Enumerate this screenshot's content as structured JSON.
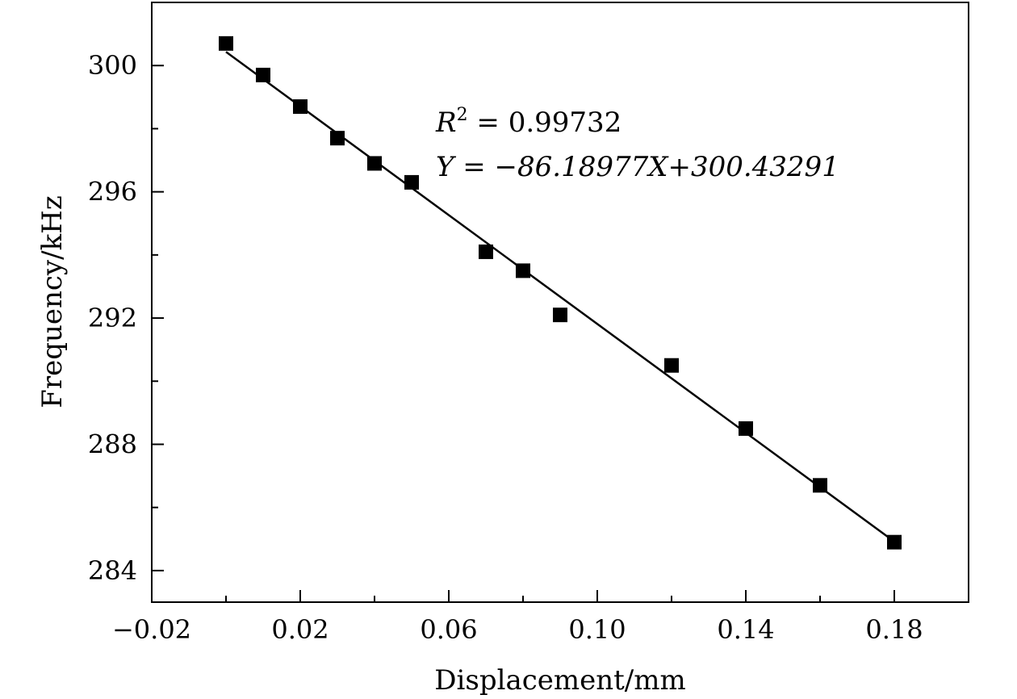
{
  "chart_data": {
    "type": "scatter",
    "xlabel": "Displacement/mm",
    "ylabel": "Frequency/kHz",
    "xlim": [
      -0.02,
      0.2
    ],
    "ylim": [
      283,
      302
    ],
    "xticks": [
      -0.02,
      0.02,
      0.06,
      0.1,
      0.14,
      0.18
    ],
    "xtick_labels": [
      "−0.02",
      "0.02",
      "0.06",
      "0.10",
      "0.14",
      "0.18"
    ],
    "yticks": [
      284,
      288,
      292,
      296,
      300
    ],
    "ytick_labels": [
      "284",
      "288",
      "292",
      "296",
      "300"
    ],
    "grid": false,
    "series": [
      {
        "marker": "square",
        "color": "#000000",
        "x": [
          0.0,
          0.01,
          0.02,
          0.03,
          0.04,
          0.05,
          0.07,
          0.08,
          0.09,
          0.12,
          0.14,
          0.16,
          0.18
        ],
        "y": [
          300.7,
          299.7,
          298.7,
          297.7,
          296.9,
          296.3,
          294.1,
          293.5,
          292.1,
          290.5,
          288.5,
          286.7,
          284.9
        ]
      }
    ],
    "fit": {
      "slope": -86.18977,
      "intercept": 300.43291,
      "x_range": [
        0.0,
        0.18
      ],
      "color": "#000000"
    },
    "annotations": {
      "r2_symbol": "R",
      "r2_exp": "2",
      "r2_value": " = 0.99732",
      "equation": "Y = −86.18977X+300.43291"
    }
  }
}
